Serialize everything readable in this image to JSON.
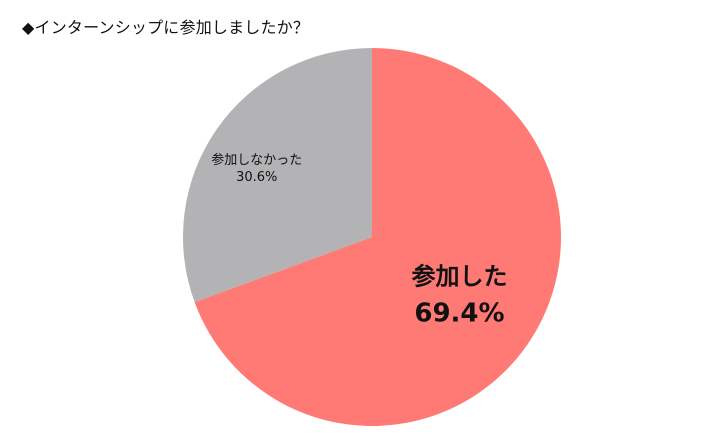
{
  "title": "◆インターンシップに参加しましたか？",
  "chart_data": {
    "type": "pie",
    "title": "◆インターンシップに参加しましたか？",
    "slices": [
      {
        "label": "参加した",
        "value": 69.4,
        "value_label": "69.4%",
        "color": "#ff7a74"
      },
      {
        "label": "参加しなかった",
        "value": 30.6,
        "value_label": "30.6%",
        "color": "#b3b3b5"
      }
    ],
    "start": "12 o'clock",
    "direction": "clockwise"
  }
}
